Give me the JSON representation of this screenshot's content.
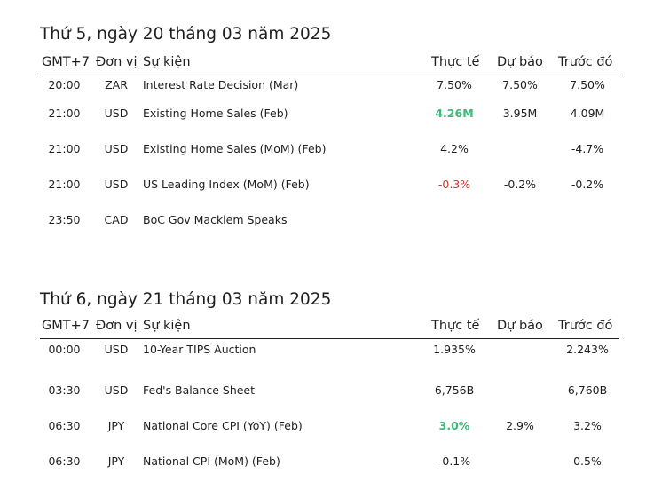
{
  "columns": {
    "time": "GMT+7",
    "currency": "Đơn vị",
    "event": "Sự kiện",
    "actual": "Thực tế",
    "forecast": "Dự báo",
    "previous": "Trước đó"
  },
  "days": [
    {
      "title": "Thứ 5, ngày 20 tháng 03 năm 2025",
      "rows": [
        {
          "time": "20:00",
          "currency": "ZAR",
          "event": "Interest Rate Decision (Mar)",
          "actual": "7.50%",
          "actual_trend": "neutral",
          "forecast": "7.50%",
          "previous": "7.50%"
        },
        {
          "time": "21:00",
          "currency": "USD",
          "event": "Existing Home Sales (Feb)",
          "actual": "4.26M",
          "actual_trend": "positive",
          "forecast": "3.95M",
          "previous": "4.09M"
        },
        {
          "time": "21:00",
          "currency": "USD",
          "event": "Existing Home Sales (MoM) (Feb)",
          "actual": "4.2%",
          "actual_trend": "neutral",
          "forecast": "",
          "previous": "-4.7%"
        },
        {
          "time": "21:00",
          "currency": "USD",
          "event": "US Leading Index (MoM) (Feb)",
          "actual": "-0.3%",
          "actual_trend": "negative",
          "forecast": "-0.2%",
          "previous": "-0.2%"
        },
        {
          "time": "23:50",
          "currency": "CAD",
          "event": "BoC Gov Macklem Speaks",
          "actual": "",
          "actual_trend": "neutral",
          "forecast": "",
          "previous": ""
        }
      ]
    },
    {
      "title": "Thứ 6, ngày 21 tháng 03 năm 2025",
      "rows": [
        {
          "time": "00:00",
          "currency": "USD",
          "event": "10-Year TIPS Auction",
          "actual": "1.935%",
          "actual_trend": "neutral",
          "forecast": "",
          "previous": "2.243%"
        },
        {
          "time": "03:30",
          "currency": "USD",
          "event": "Fed's Balance Sheet",
          "actual": "6,756B",
          "actual_trend": "neutral",
          "forecast": "",
          "previous": "6,760B"
        },
        {
          "time": "06:30",
          "currency": "JPY",
          "event": "National Core CPI (YoY) (Feb)",
          "actual": "3.0%",
          "actual_trend": "positive",
          "forecast": "2.9%",
          "previous": "3.2%"
        },
        {
          "time": "06:30",
          "currency": "JPY",
          "event": "National CPI (MoM) (Feb)",
          "actual": "-0.1%",
          "actual_trend": "neutral",
          "forecast": "",
          "previous": "0.5%"
        }
      ]
    }
  ],
  "colors": {
    "positive": "#3cb878",
    "negative": "#c0392b",
    "text": "#1e1e1e"
  }
}
